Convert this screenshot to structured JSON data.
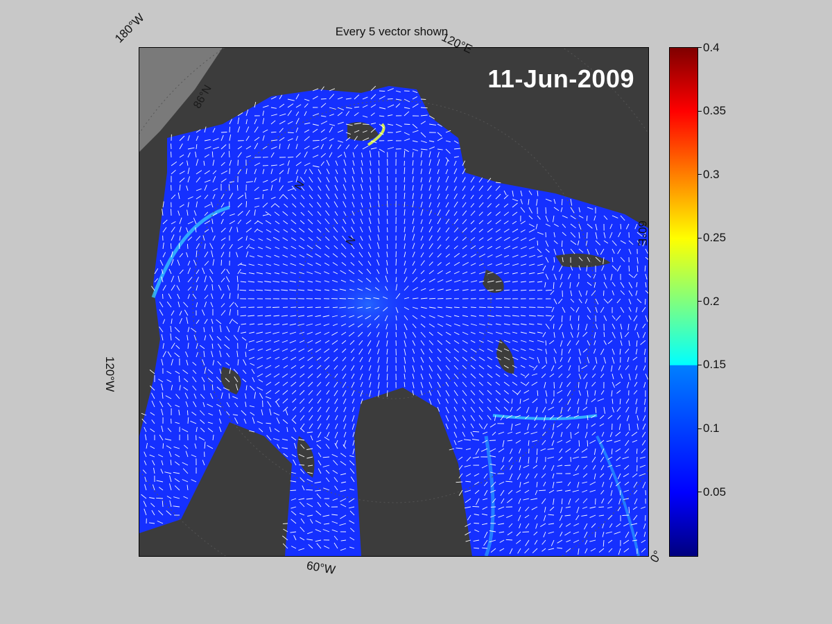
{
  "title": "Every 5 vector shown",
  "date": "11-Jun-2009",
  "map_labels": {
    "lon_180w": "180°W",
    "lon_120e": "120°E",
    "lon_60e": "60°E",
    "lon_120w": "120°W",
    "lon_60w": "60°W",
    "lon_0": "0°",
    "lat_86n": "86°N",
    "lat_mid_a": "N",
    "lat_mid_b": "N"
  },
  "colorbar": {
    "min": 0,
    "max": 0.4,
    "colormap": "jet",
    "ticks": [
      "0.4",
      "0.35",
      "0.3",
      "0.25",
      "0.2",
      "0.15",
      "0.1",
      "0.05"
    ]
  },
  "colors": {
    "background": "#c8c8c8",
    "land": "#3c3c3c",
    "ice_drift": "#1530ff",
    "vectors": "#ffffff"
  }
}
